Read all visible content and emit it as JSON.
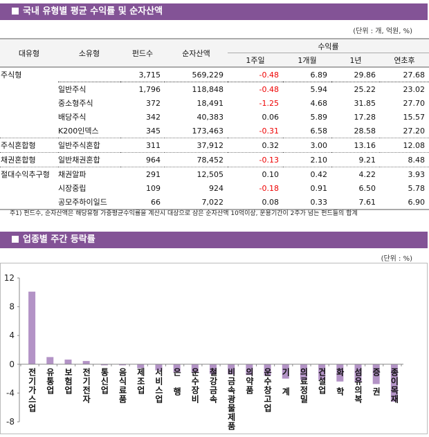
{
  "section1": {
    "title": "국내 유형별 평균 수익률 및 순자산액",
    "unit": "(단위 : 개, 억원, %)",
    "headers": {
      "major": "대유형",
      "minor": "소유형",
      "funds": "펀드수",
      "assets": "순자산액",
      "returns": "수익률",
      "w1": "1주일",
      "m1": "1개월",
      "y1": "1년",
      "ytd": "연초후"
    },
    "rows": [
      {
        "major": "주식형",
        "minor": "",
        "funds": "3,715",
        "assets": "569,229",
        "w1": "-0.48",
        "m1": "6.89",
        "y1": "29.86",
        "ytd": "27.68"
      },
      {
        "major": "",
        "minor": "일반주식",
        "funds": "1,796",
        "assets": "118,848",
        "w1": "-0.48",
        "m1": "5.94",
        "y1": "25.22",
        "ytd": "23.02"
      },
      {
        "major": "",
        "minor": "중소형주식",
        "funds": "372",
        "assets": "18,491",
        "w1": "-1.25",
        "m1": "4.68",
        "y1": "31.85",
        "ytd": "27.70"
      },
      {
        "major": "",
        "minor": "배당주식",
        "funds": "342",
        "assets": "40,383",
        "w1": "0.06",
        "m1": "5.89",
        "y1": "17.28",
        "ytd": "15.57"
      },
      {
        "major": "",
        "minor": "K200인덱스",
        "funds": "345",
        "assets": "173,463",
        "w1": "-0.31",
        "m1": "6.58",
        "y1": "28.58",
        "ytd": "27.20"
      },
      {
        "major": "주식혼합형",
        "minor": "일반주식혼합",
        "funds": "311",
        "assets": "37,912",
        "w1": "0.32",
        "m1": "3.00",
        "y1": "13.16",
        "ytd": "12.08"
      },
      {
        "major": "채권혼합형",
        "minor": "일반채권혼합",
        "funds": "964",
        "assets": "78,452",
        "w1": "-0.13",
        "m1": "2.10",
        "y1": "9.21",
        "ytd": "8.48"
      },
      {
        "major": "절대수익추구형",
        "minor": "채권알파",
        "funds": "291",
        "assets": "12,505",
        "w1": "0.10",
        "m1": "0.42",
        "y1": "4.22",
        "ytd": "3.93"
      },
      {
        "major": "",
        "minor": "시장중립",
        "funds": "109",
        "assets": "924",
        "w1": "-0.18",
        "m1": "0.91",
        "y1": "6.50",
        "ytd": "5.78"
      },
      {
        "major": "",
        "minor": "공모주하이일드",
        "funds": "66",
        "assets": "7,022",
        "w1": "0.08",
        "m1": "0.33",
        "y1": "7.61",
        "ytd": "6.90"
      }
    ],
    "note": "주1) 펀드수, 순자산액은 해당유형 가중평균수익률을 계산시 대상으로 삼은 순자산액 10억이상, 운용기간이 2주가 넘는 펀드들의 합계"
  },
  "section2": {
    "title": "업종별 주간 등락률",
    "unit": "(단위 : %)"
  },
  "colors": {
    "header": "#835396",
    "bar": "#b393c6",
    "negative": "#e00000"
  },
  "chart_data": {
    "type": "bar",
    "ylim": [
      -8,
      12
    ],
    "yticks": [
      "12",
      "8",
      "4",
      "0",
      "-4",
      "-8"
    ],
    "categories": [
      "전기가스업",
      "유통업",
      "보험업",
      "전기전자",
      "통신업",
      "음식료품",
      "제조업",
      "서비스업",
      "은 행",
      "운수장비",
      "철강금속",
      "비금속광물제품",
      "의약품",
      "운수창고업",
      "기 계",
      "의료정밀",
      "건설업",
      "화 학",
      "섬유의복",
      "증 권",
      "종이목재"
    ],
    "values": [
      10.1,
      1.0,
      0.65,
      0.45,
      -0.15,
      -0.15,
      -0.55,
      -0.85,
      -1.1,
      -1.2,
      -1.35,
      -1.4,
      -1.5,
      -1.6,
      -2.0,
      -2.15,
      -2.2,
      -2.4,
      -2.5,
      -2.75,
      -5.2
    ]
  }
}
